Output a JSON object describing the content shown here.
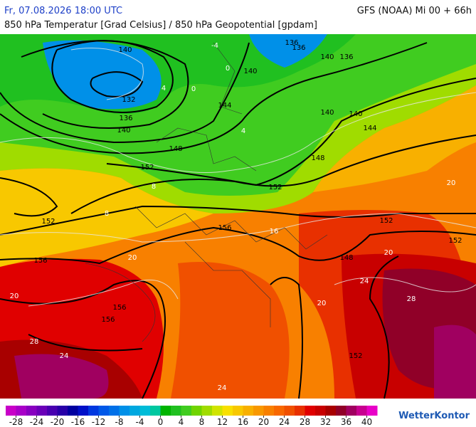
{
  "header": {
    "datetime": "Fr, 07.08.2026 18:00 UTC",
    "model": "GFS (NOAA) Mi 00 + 66h",
    "parameter": "850 hPa Temperatur [Grad Celsius] / 850 hPa Geopotential [gpdam]"
  },
  "map": {
    "isohypse_labels": [
      140,
      132,
      136,
      140,
      136,
      140,
      140,
      144,
      148,
      152,
      152,
      152,
      156,
      156,
      156,
      156,
      140,
      136,
      136,
      140,
      144,
      148,
      152,
      152,
      148,
      152
    ],
    "isotherm_labels": [
      -4,
      0,
      4,
      0,
      4,
      8,
      8,
      16,
      20,
      20,
      20,
      20,
      24,
      24,
      28,
      28,
      24,
      20
    ]
  },
  "legend": {
    "range": [
      -30,
      42
    ],
    "ticks": [
      -28,
      -24,
      -20,
      -16,
      -12,
      -8,
      -4,
      0,
      4,
      8,
      12,
      16,
      20,
      24,
      28,
      32,
      36,
      40
    ],
    "colors": [
      "#c800c8",
      "#a800c8",
      "#8800c0",
      "#6a00b8",
      "#4800b0",
      "#2800a8",
      "#0000a0",
      "#0010c8",
      "#0038e0",
      "#0058e8",
      "#0070e8",
      "#0090e8",
      "#00a8e0",
      "#00bcd8",
      "#00c8a0",
      "#00b400",
      "#20c020",
      "#40cc20",
      "#70d400",
      "#a0dc00",
      "#d0e400",
      "#f8e000",
      "#f8c800",
      "#f8b000",
      "#f89800",
      "#f88000",
      "#f86800",
      "#f05000",
      "#e83000",
      "#e00000",
      "#c80000",
      "#a80000",
      "#900028",
      "#a00060",
      "#c80090",
      "#e800c8"
    ]
  },
  "logo": "WetterKontor"
}
